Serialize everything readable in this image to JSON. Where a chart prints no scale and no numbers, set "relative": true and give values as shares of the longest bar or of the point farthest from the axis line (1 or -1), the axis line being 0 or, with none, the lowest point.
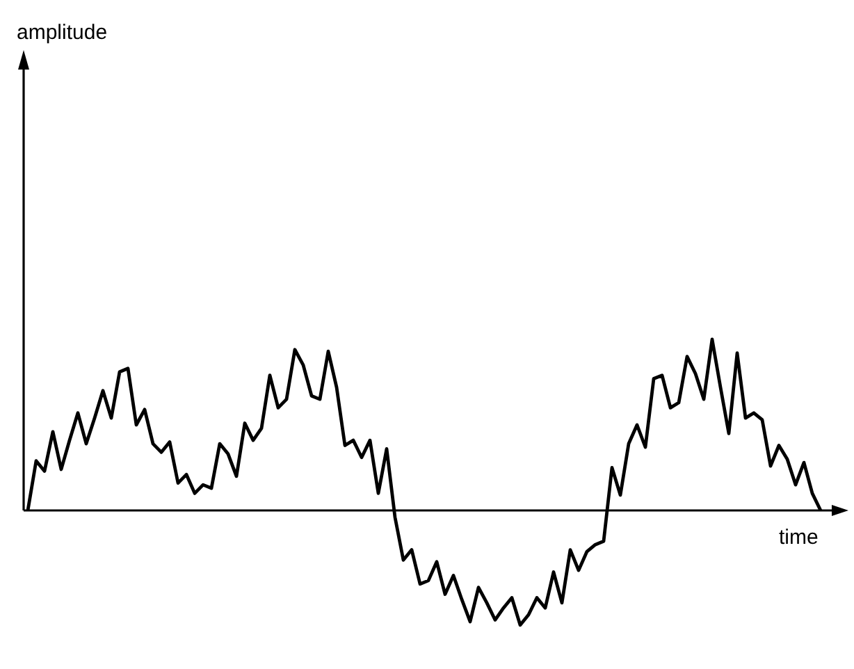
{
  "chart_data": {
    "type": "line",
    "relative": true,
    "xlabel": "time",
    "annotations": [
      "amplitude"
    ],
    "marker": "none",
    "line_style": "solid",
    "categories": [
      null,
      null,
      null,
      null,
      null,
      null,
      null,
      null,
      null,
      null,
      null,
      null,
      null,
      null,
      null,
      null,
      null,
      null,
      null,
      null,
      null,
      null,
      null,
      null,
      null,
      null,
      null,
      null,
      null,
      null,
      null,
      null,
      null,
      null,
      null,
      null,
      null,
      null,
      null,
      null,
      null,
      null,
      null,
      null,
      null,
      null,
      null,
      null,
      null,
      null,
      null,
      null,
      null,
      null,
      null,
      null,
      null,
      null,
      null,
      null,
      null,
      null,
      null,
      null,
      null,
      null,
      null,
      null,
      null,
      null,
      null,
      null,
      null,
      null,
      null,
      null,
      null,
      null,
      null,
      null,
      null,
      null,
      null,
      null,
      null,
      null,
      null,
      null,
      null,
      null,
      null,
      null,
      null,
      null,
      null,
      null
    ],
    "series": [
      {
        "color": "#000000",
        "values": [
          0,
          0.29,
          0.23,
          0.46,
          0.24,
          0.41,
          0.57,
          0.39,
          0.54,
          0.7,
          0.54,
          0.81,
          0.83,
          0.5,
          0.59,
          0.39,
          0.34,
          0.4,
          0.16,
          0.21,
          0.1,
          0.15,
          0.13,
          0.39,
          0.33,
          0.2,
          0.51,
          0.41,
          0.48,
          0.79,
          0.6,
          0.65,
          0.94,
          0.85,
          0.67,
          0.65,
          0.93,
          0.72,
          0.38,
          0.41,
          0.31,
          0.41,
          0.1,
          0.36,
          -0.04,
          -0.29,
          -0.23,
          -0.43,
          -0.41,
          -0.3,
          -0.49,
          -0.38,
          -0.52,
          -0.65,
          -0.45,
          -0.54,
          -0.64,
          -0.57,
          -0.51,
          -0.67,
          -0.61,
          -0.51,
          -0.57,
          -0.36,
          -0.54,
          -0.23,
          -0.35,
          -0.24,
          -0.2,
          -0.18,
          0.25,
          0.09,
          0.39,
          0.5,
          0.37,
          0.77,
          0.79,
          0.6,
          0.63,
          0.9,
          0.8,
          0.65,
          1,
          0.72,
          0.45,
          0.92,
          0.54,
          0.57,
          0.53,
          0.26,
          0.38,
          0.3,
          0.15,
          0.28,
          0.1,
          0
        ]
      }
    ]
  }
}
